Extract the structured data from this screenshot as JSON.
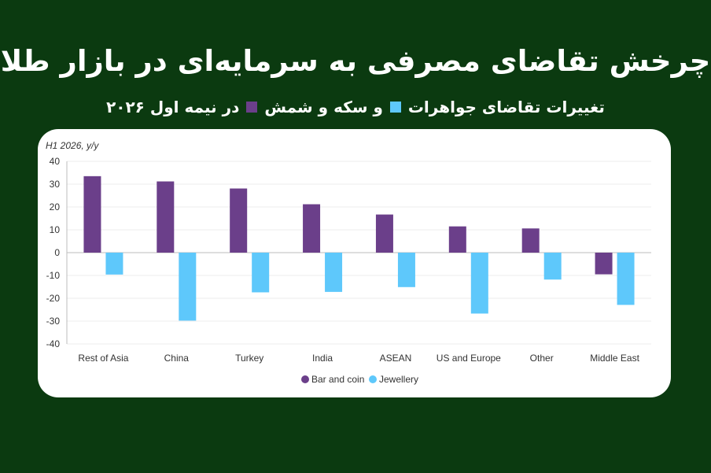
{
  "header": {
    "title": "چرخش تقاضای مصرفی به سرمایه‌ای در بازار طلا",
    "subtitle_part1": "تغییرات تقاضای جواهرات",
    "subtitle_part2": "و سکه و شمش",
    "subtitle_part3": "در نیمه اول ۲۰۲۶"
  },
  "colors": {
    "background": "#0b3a10",
    "bar_and_coin": "#6b3f8a",
    "jewellery": "#5ec8fb"
  },
  "chart_data": {
    "type": "bar",
    "title": "",
    "ylabel": "H1 2026, y/y",
    "xlabel": "",
    "categories": [
      "Rest of Asia",
      "China",
      "Turkey",
      "India",
      "ASEAN",
      "US and Europe",
      "Other",
      "Middle East"
    ],
    "series": [
      {
        "name": "Bar and coin",
        "values": [
          33.5,
          31.2,
          28.1,
          21.2,
          16.7,
          11.5,
          10.6,
          -9.5
        ]
      },
      {
        "name": "Jewellery",
        "values": [
          -9.6,
          -29.8,
          -17.4,
          -17.2,
          -15.1,
          -26.7,
          -11.8,
          -22.9
        ]
      }
    ],
    "ylim": [
      -40,
      40
    ],
    "yticks": [
      40,
      30,
      20,
      10,
      0,
      -10,
      -20,
      -30,
      -40
    ],
    "grid": true,
    "legend_position": "bottom-center"
  }
}
